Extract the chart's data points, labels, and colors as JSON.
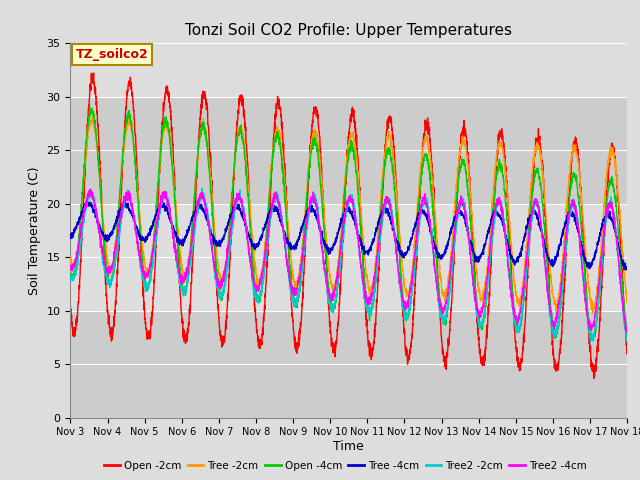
{
  "title": "Tonzi Soil CO2 Profile: Upper Temperatures",
  "xlabel": "Time",
  "ylabel": "Soil Temperature (C)",
  "ylim": [
    0,
    35
  ],
  "annotation_text": "TZ_soilco2",
  "annotation_box_color": "#ffffcc",
  "annotation_box_edgecolor": "#aa8800",
  "series": [
    {
      "label": "Open -2cm",
      "color": "#ff0000"
    },
    {
      "label": "Tree -2cm",
      "color": "#ff9900"
    },
    {
      "label": "Open -4cm",
      "color": "#00cc00"
    },
    {
      "label": "Tree -4cm",
      "color": "#0000cc"
    },
    {
      "label": "Tree2 -2cm",
      "color": "#00cccc"
    },
    {
      "label": "Tree2 -4cm",
      "color": "#ff00ff"
    }
  ],
  "background_color": "#dddddd",
  "plot_bg_color": "#dddddd",
  "band_colors": [
    "#cccccc",
    "#dddddd"
  ],
  "grid_color": "#ffffff",
  "title_fontsize": 11,
  "axis_label_fontsize": 9,
  "xtick_labels": [
    "Nov 3",
    "Nov 4",
    "Nov 5",
    "Nov 6",
    "Nov 7",
    "Nov 8",
    "Nov 9",
    "Nov 10",
    "Nov 11",
    "Nov 12",
    "Nov 13",
    "Nov 14",
    "Nov 15",
    "Nov 16",
    "Nov 17",
    "Nov 18"
  ],
  "ytick_positions": [
    0,
    5,
    10,
    15,
    20,
    25,
    30,
    35
  ]
}
